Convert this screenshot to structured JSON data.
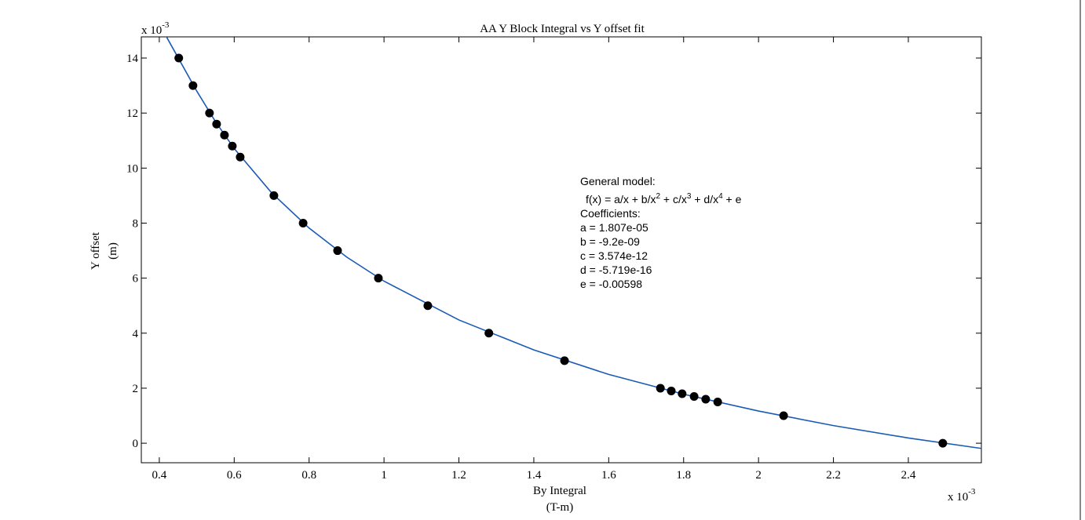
{
  "chart_data": {
    "type": "scatter",
    "title": "AA Y Block Integral vs Y offset fit",
    "xlabel": [
      "By Integral",
      "(T-m)"
    ],
    "ylabel": [
      "Y offset",
      "(m)"
    ],
    "x_multiplier": [
      "x 10",
      "-3"
    ],
    "y_multiplier": [
      "x 10",
      "-3"
    ],
    "xlim": [
      0.352,
      2.595
    ],
    "ylim": [
      -0.71,
      14.77
    ],
    "xticks": [
      0.4,
      0.6,
      0.8,
      1,
      1.2,
      1.4,
      1.6,
      1.8,
      2,
      2.2,
      2.4
    ],
    "yticks": [
      0,
      2,
      4,
      6,
      8,
      10,
      12,
      14
    ],
    "series": [
      {
        "mode": "line",
        "color": "#1a5bb5",
        "x": [
          0.42,
          0.45,
          0.5,
          0.55,
          0.6,
          0.7,
          0.8,
          0.9,
          1.0,
          1.2,
          1.4,
          1.6,
          1.8,
          2.0,
          2.2,
          2.4,
          2.595
        ],
        "values": [
          14.75,
          14.02,
          12.8,
          11.69,
          10.71,
          9.1,
          7.82,
          6.77,
          5.89,
          4.48,
          3.39,
          2.5,
          1.78,
          1.17,
          0.64,
          0.19,
          -0.19
        ]
      },
      {
        "mode": "markers",
        "color": "#000000",
        "x": [
          0.452,
          0.49,
          0.534,
          0.553,
          0.574,
          0.595,
          0.616,
          0.706,
          0.784,
          0.876,
          0.985,
          1.117,
          1.28,
          1.482,
          1.738,
          1.767,
          1.796,
          1.828,
          1.859,
          1.891,
          2.067,
          2.492
        ],
        "values": [
          14,
          13,
          12,
          11.6,
          11.2,
          10.8,
          10.4,
          9,
          8,
          7,
          6,
          5,
          4,
          3,
          2,
          1.9,
          1.8,
          1.7,
          1.6,
          1.5,
          1,
          0
        ]
      }
    ],
    "annotation": {
      "heading": "General model:",
      "formula": [
        "f(x) = a/x + b/x",
        "2",
        " + c/x",
        "3",
        " + d/x",
        "4",
        " + e"
      ],
      "coefficients_heading": "Coefficients:",
      "coefficients": [
        "a = 1.807e-05",
        "b = -9.2e-09",
        "c = 3.574e-12",
        "d = -5.719e-16",
        "e = -0.00598"
      ]
    }
  }
}
